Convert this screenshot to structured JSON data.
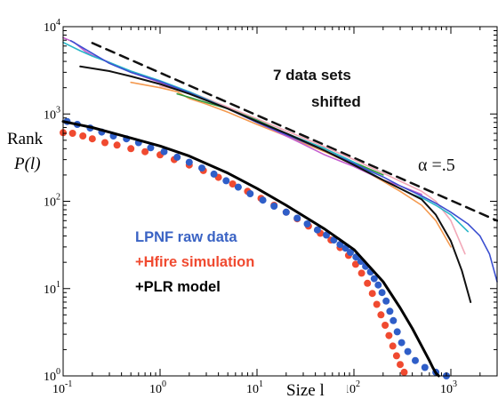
{
  "chart_data": {
    "type": "scatter",
    "xscale": "log",
    "yscale": "log",
    "xlim": [
      0.1,
      3000
    ],
    "ylim": [
      1,
      10000
    ],
    "grid": false,
    "x_ticks": [
      {
        "base": "10",
        "exp": "-1",
        "value": 0.1
      },
      {
        "base": "10",
        "exp": "0",
        "value": 1
      },
      {
        "base": "10",
        "exp": "1",
        "value": 10
      },
      {
        "base": "10",
        "exp": "2",
        "value": 100
      },
      {
        "base": "10",
        "exp": "3",
        "value": 1000
      }
    ],
    "y_ticks": [
      {
        "base": "10",
        "exp": "0",
        "value": 1
      },
      {
        "base": "10",
        "exp": "1",
        "value": 10
      },
      {
        "base": "10",
        "exp": "2",
        "value": 100
      },
      {
        "base": "10",
        "exp": "3",
        "value": 1000
      },
      {
        "base": "10",
        "exp": "4",
        "value": 10000
      }
    ],
    "xlabel": "Size l",
    "ylabel_line1": "Rank",
    "ylabel_line2": "P(l)",
    "annotations": {
      "datasets_line1": "7 data sets",
      "datasets_line2": "shifted",
      "alpha_label": "α =.5"
    },
    "legend": {
      "placement": "lower-left",
      "entries": [
        {
          "label": "LPNF raw data",
          "color": "#3a63c4"
        },
        {
          "label": "+Hfire simulation",
          "color": "#f04a30"
        },
        {
          "label": "+PLR model",
          "color": "#000000"
        }
      ]
    },
    "series": [
      {
        "key": "lpnf",
        "style": "points",
        "color": "#2f5ec8",
        "x": [
          0.11,
          0.14,
          0.19,
          0.25,
          0.33,
          0.45,
          0.6,
          0.8,
          1.1,
          1.5,
          2.0,
          2.7,
          3.6,
          4.8,
          6.4,
          8.5,
          11.5,
          15,
          20,
          26,
          33,
          42,
          52,
          62,
          72,
          82,
          92,
          105,
          118,
          132,
          148,
          162,
          178,
          195,
          215,
          235,
          255,
          280,
          310,
          360,
          430,
          540,
          700,
          900
        ],
        "y": [
          820,
          760,
          690,
          620,
          560,
          520,
          470,
          410,
          370,
          320,
          280,
          240,
          205,
          172,
          145,
          122,
          103,
          88,
          75,
          64,
          55,
          47,
          41,
          36,
          32,
          29,
          26,
          23,
          20.5,
          18,
          15.5,
          13,
          11,
          9,
          7.2,
          5.5,
          4.3,
          3.2,
          2.4,
          1.9,
          1.5,
          1.25,
          1.1,
          1.0
        ]
      },
      {
        "key": "hfire",
        "style": "points",
        "color": "#f04a30",
        "x": [
          0.1,
          0.125,
          0.16,
          0.2,
          0.27,
          0.36,
          0.5,
          0.7,
          1.0,
          1.4,
          2.0,
          2.8,
          4.0,
          5.6,
          8.0,
          11,
          15,
          20,
          26,
          34,
          45,
          58,
          72,
          88,
          104,
          120,
          138,
          155,
          172,
          190,
          210,
          230,
          252,
          275,
          300,
          330
        ],
        "y": [
          610,
          600,
          560,
          520,
          470,
          440,
          400,
          370,
          340,
          300,
          260,
          225,
          188,
          158,
          130,
          108,
          90,
          75,
          63,
          52,
          43,
          36,
          29.5,
          24,
          19,
          15,
          11.5,
          8.8,
          6.6,
          5.0,
          3.8,
          2.9,
          2.2,
          1.7,
          1.35,
          1.1
        ]
      },
      {
        "key": "plr_model",
        "style": "line",
        "color": "#000000",
        "x": [
          0.1,
          0.2,
          0.5,
          1,
          2,
          5,
          10,
          20,
          50,
          100,
          200,
          300,
          400,
          500,
          600,
          650,
          700,
          750
        ],
        "y": [
          820,
          700,
          530,
          430,
          330,
          210,
          140,
          90,
          48,
          28,
          12,
          6,
          3.5,
          2.2,
          1.5,
          1.25,
          1.08,
          1.0
        ]
      },
      {
        "key": "set_magenta",
        "style": "line",
        "color": "#c45fd0",
        "x": [
          0.1,
          0.13,
          0.17,
          0.2,
          0.3,
          0.5,
          1,
          2,
          3,
          5,
          10,
          20,
          30,
          50,
          100,
          200,
          300,
          500
        ],
        "y": [
          7500,
          6600,
          5200,
          4700,
          3900,
          3000,
          2300,
          1750,
          1450,
          1150,
          800,
          560,
          450,
          340,
          250,
          175,
          150,
          120
        ]
      },
      {
        "key": "set_cyan",
        "style": "line",
        "color": "#28b6c8",
        "x": [
          0.1,
          0.15,
          0.2,
          0.3,
          0.5,
          1,
          2,
          5,
          10,
          20,
          50,
          100,
          150,
          200,
          300,
          400,
          500,
          700,
          1000,
          1500
        ],
        "y": [
          6600,
          5300,
          4600,
          3900,
          3100,
          2400,
          1800,
          1150,
          830,
          600,
          400,
          280,
          210,
          175,
          140,
          120,
          110,
          90,
          70,
          45
        ]
      },
      {
        "key": "set_blue",
        "style": "line",
        "color": "#3b4fd0",
        "x": [
          0.12,
          0.3,
          0.5,
          1,
          2,
          5,
          10,
          20,
          50,
          100,
          200,
          300,
          500,
          700,
          1000,
          1500,
          2000,
          2500,
          3000
        ],
        "y": [
          6900,
          3800,
          3000,
          2350,
          1750,
          1150,
          800,
          580,
          380,
          270,
          190,
          150,
          115,
          95,
          75,
          55,
          40,
          25,
          12
        ]
      },
      {
        "key": "set_green",
        "style": "line",
        "color": "#2f9a3a",
        "x": [
          1.5,
          2,
          3,
          5,
          10,
          20,
          50,
          100,
          150,
          200
        ],
        "y": [
          1700,
          1550,
          1350,
          1150,
          850,
          600,
          400,
          280,
          230,
          200
        ]
      },
      {
        "key": "set_orange",
        "style": "line",
        "color": "#f49a50",
        "x": [
          0.5,
          1,
          1.5,
          2,
          3,
          5,
          10,
          20,
          50,
          100,
          200,
          300,
          500,
          700,
          1000
        ],
        "y": [
          2300,
          2000,
          1800,
          1500,
          1300,
          1050,
          760,
          560,
          370,
          260,
          170,
          130,
          90,
          60,
          30
        ]
      },
      {
        "key": "set_salmon",
        "style": "line",
        "color": "#f2a8b8",
        "x": [
          1,
          1.5,
          2,
          3,
          5,
          10,
          20,
          50,
          100,
          200,
          300,
          500,
          700,
          1000,
          1400
        ],
        "y": [
          2100,
          1900,
          1800,
          1500,
          1200,
          880,
          640,
          420,
          300,
          210,
          170,
          130,
          100,
          60,
          25
        ]
      },
      {
        "key": "set_black",
        "style": "line",
        "color": "#111111",
        "x": [
          0.15,
          0.3,
          0.5,
          1,
          2,
          5,
          10,
          20,
          50,
          100,
          200,
          300,
          500,
          700,
          1000,
          1300,
          1600
        ],
        "y": [
          3500,
          3100,
          2700,
          2200,
          1700,
          1150,
          820,
          600,
          380,
          260,
          175,
          140,
          105,
          70,
          35,
          16,
          7
        ]
      },
      {
        "key": "slope_guide",
        "style": "dashed",
        "color": "#111111",
        "x": [
          0.2,
          3000
        ],
        "y": [
          6500,
          60
        ]
      }
    ]
  }
}
